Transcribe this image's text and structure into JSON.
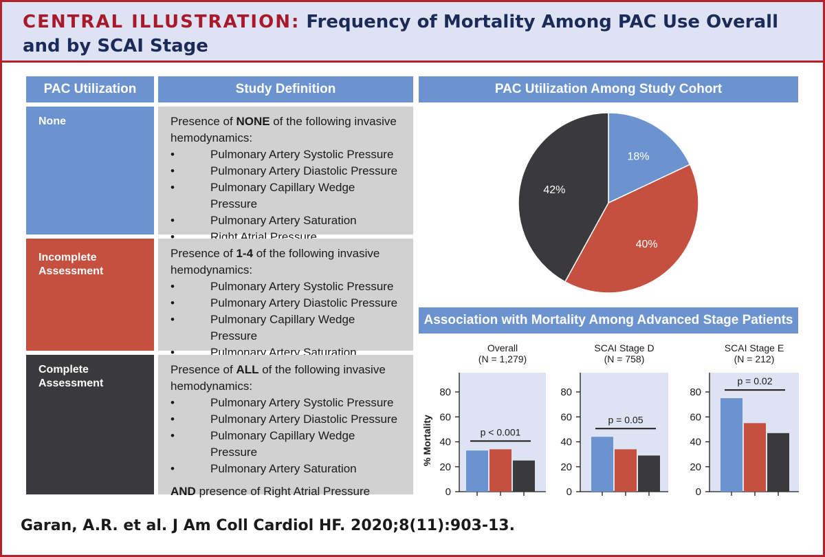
{
  "header": {
    "central": "CENTRAL ILLUSTRATION:",
    "title": "Frequency of Mortality Among PAC Use Overall and by SCAI Stage"
  },
  "table": {
    "col1_header": "PAC Utilization",
    "col2_header": "Study Definition",
    "rows": [
      {
        "label": "None",
        "intro_prefix": "Presence of ",
        "intro_bold": "NONE",
        "intro_suffix": " of the following invasive hemodynamics:",
        "items": [
          "Pulmonary Artery Systolic Pressure",
          "Pulmonary Artery Diastolic Pressure",
          "Pulmonary Capillary Wedge Pressure",
          "Pulmonary Artery Saturation",
          "Right Atrial Pressure"
        ],
        "extra_bold": "",
        "extra_text": ""
      },
      {
        "label": "Incomplete Assessment",
        "intro_prefix": "Presence of ",
        "intro_bold": "1-4",
        "intro_suffix": " of the following invasive hemodynamics:",
        "items": [
          "Pulmonary Artery Systolic Pressure",
          "Pulmonary Artery Diastolic Pressure",
          "Pulmonary Capillary Wedge Pressure",
          "Pulmonary Artery Saturation"
        ],
        "extra_bold": "",
        "extra_text": ""
      },
      {
        "label": "Complete Assessment",
        "intro_prefix": "Presence of ",
        "intro_bold": "ALL",
        "intro_suffix": " of the following invasive hemodynamics:",
        "items": [
          "Pulmonary Artery Systolic Pressure",
          "Pulmonary Artery Diastolic Pressure",
          "Pulmonary Capillary Wedge Pressure",
          "Pulmonary Artery Saturation"
        ],
        "extra_bold": "AND",
        "extra_text": " presence of Right Atrial Pressure"
      }
    ],
    "bullet": "•"
  },
  "pie_section": {
    "title": "PAC Utilization Among Study Cohort"
  },
  "bar_section": {
    "title": "Association with Mortality Among Advanced Stage Patients"
  },
  "citation": "Garan, A.R. et al. J Am Coll Cardiol HF. 2020;8(11):903-13.",
  "colors": {
    "none": "#6b93d0",
    "incomplete": "#c55040",
    "complete": "#3a3a3c",
    "panel": "#dde3f2",
    "accent": "#b5212b"
  },
  "chart_data": [
    {
      "type": "pie",
      "categories": [
        "None",
        "Incomplete Assessment",
        "Complete Assessment"
      ],
      "values": [
        18,
        40,
        42
      ],
      "labels": [
        "18%",
        "40%",
        "42%"
      ],
      "title": "PAC Utilization Among Study Cohort"
    },
    {
      "type": "bar",
      "title": "Overall",
      "subtitle": "(N = 1,279)",
      "categories": [
        "None",
        "Incomplete Assessment",
        "Complete Assessment"
      ],
      "values": [
        33,
        34,
        25
      ],
      "ylabel": "% Mortality",
      "ylim": [
        0,
        80
      ],
      "yticks": [
        "0",
        "20",
        "40",
        "60",
        "80"
      ],
      "annotation": "p < 0.001"
    },
    {
      "type": "bar",
      "title": "SCAI Stage D",
      "subtitle": "(N = 758)",
      "categories": [
        "None",
        "Incomplete Assessment",
        "Complete Assessment"
      ],
      "values": [
        44,
        34,
        29
      ],
      "ylabel": "",
      "ylim": [
        0,
        80
      ],
      "yticks": [
        "0",
        "20",
        "40",
        "60",
        "80"
      ],
      "annotation": "p = 0.05"
    },
    {
      "type": "bar",
      "title": "SCAI Stage E",
      "subtitle": "(N = 212)",
      "categories": [
        "None",
        "Incomplete Assessment",
        "Complete Assessment"
      ],
      "values": [
        75,
        55,
        47
      ],
      "ylabel": "",
      "ylim": [
        0,
        80
      ],
      "yticks": [
        "0",
        "20",
        "40",
        "60",
        "80"
      ],
      "annotation": "p = 0.02"
    }
  ]
}
